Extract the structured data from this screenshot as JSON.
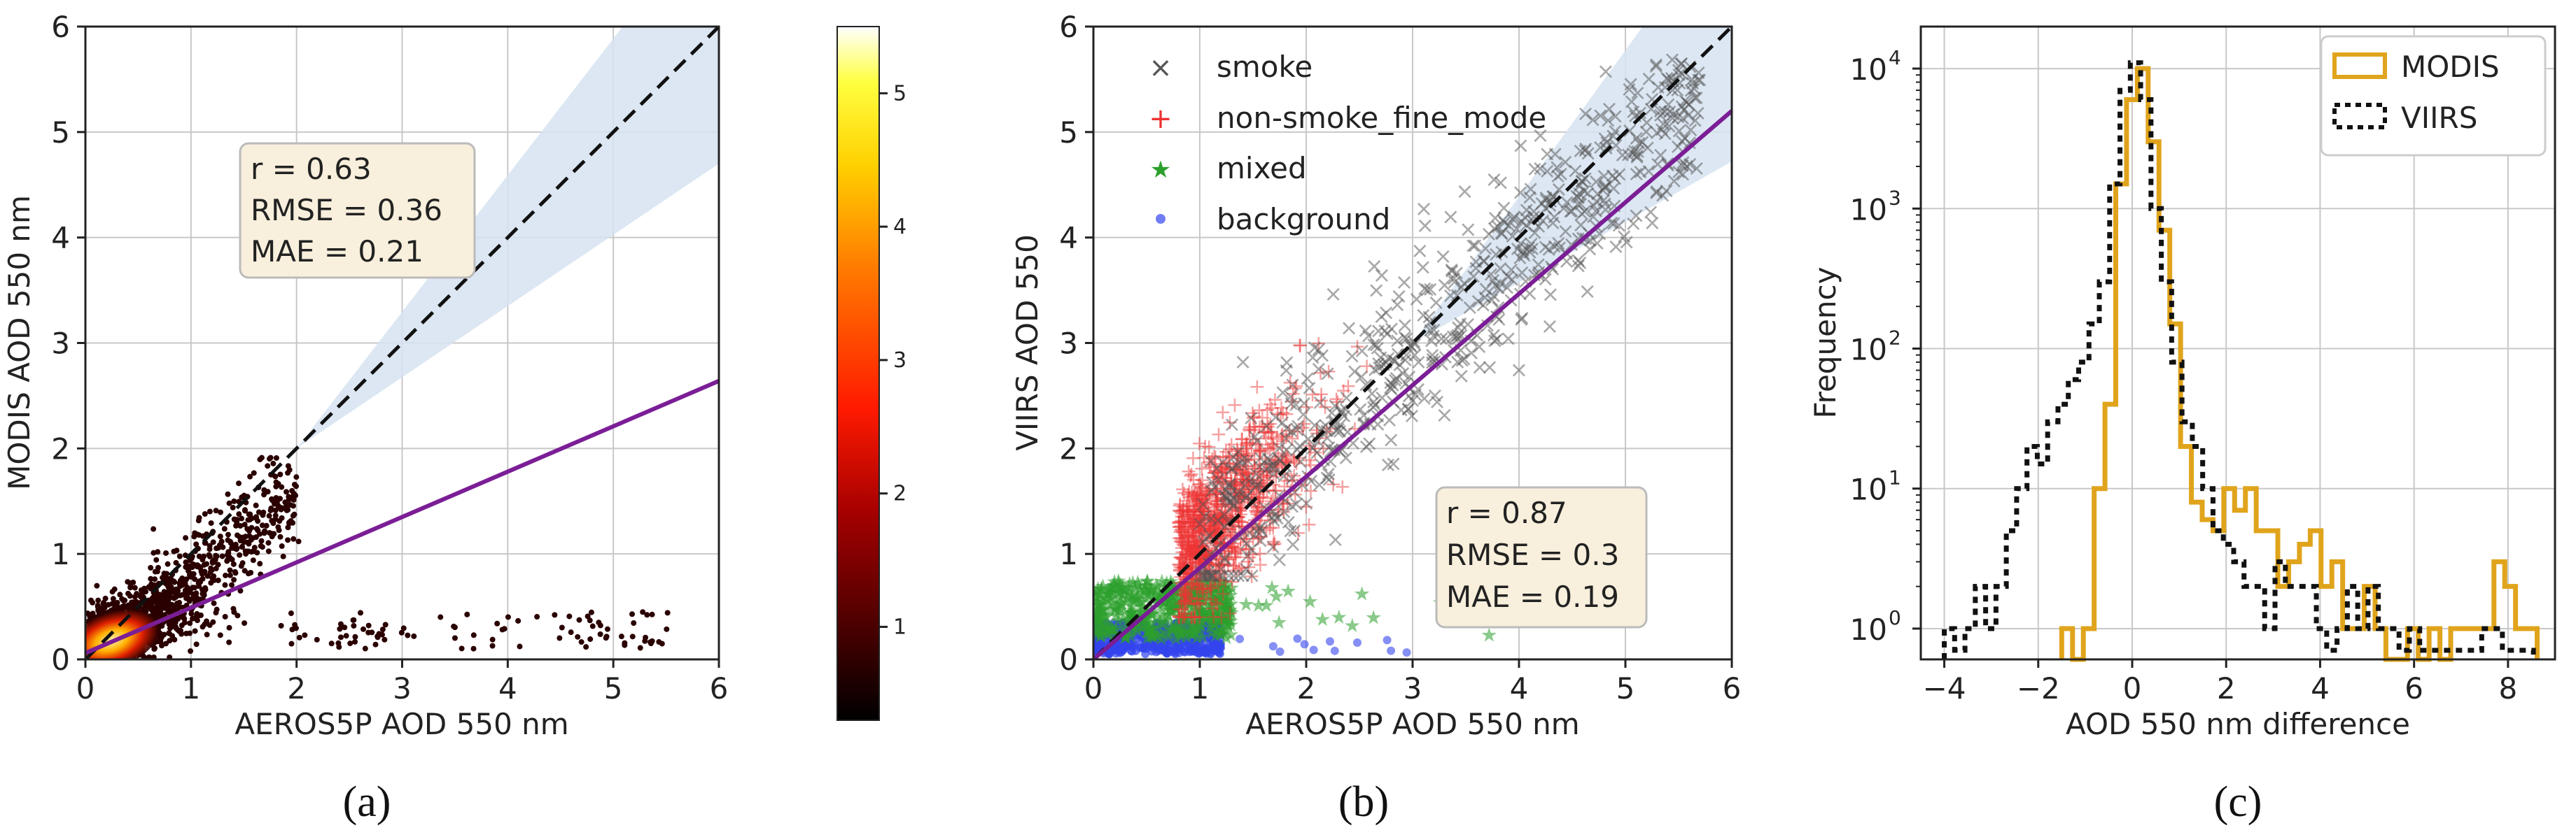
{
  "chart_data": [
    {
      "id": "a",
      "type": "scatter",
      "panel_label": "(a)",
      "xlabel": "AEROS5P AOD 550 nm",
      "ylabel": "MODIS AOD 550 nm",
      "xlim": [
        0,
        6
      ],
      "ylim": [
        0,
        6
      ],
      "xticks": [
        "0",
        "1",
        "2",
        "3",
        "4",
        "5",
        "6"
      ],
      "yticks": [
        "0",
        "1",
        "2",
        "3",
        "4",
        "5",
        "6"
      ],
      "grid": true,
      "stats": [
        "r = 0.63",
        "RMSE = 0.36",
        "MAE = 0.21"
      ],
      "one_to_one_line": {
        "x": [
          0,
          6
        ],
        "y": [
          0,
          6
        ]
      },
      "regression_line": {
        "x": [
          0,
          6
        ],
        "y": [
          0.06,
          2.64
        ]
      },
      "colorbar": {
        "min": 0.3,
        "max": 5.5,
        "ticks": [
          "1",
          "2",
          "3",
          "4",
          "5"
        ],
        "colormap": "hot"
      },
      "colors": {
        "regression": "#7b1e96",
        "band": "#d6e3f1",
        "box_fill": "#f8efdc",
        "box_edge": "#bbbbbb"
      }
    },
    {
      "id": "b",
      "type": "scatter",
      "panel_label": "(b)",
      "xlabel": "AEROS5P AOD 550 nm",
      "ylabel": "VIIRS AOD 550",
      "xlim": [
        0,
        6
      ],
      "ylim": [
        0,
        6
      ],
      "xticks": [
        "0",
        "1",
        "2",
        "3",
        "4",
        "5",
        "6"
      ],
      "yticks": [
        "0",
        "1",
        "2",
        "3",
        "4",
        "5",
        "6"
      ],
      "grid": true,
      "legend": {
        "placement": "top-left",
        "entries": [
          {
            "label": "smoke",
            "marker": "x",
            "color": "#555555"
          },
          {
            "label": "non-smoke_fine_mode",
            "marker": "+",
            "color": "#ee3333"
          },
          {
            "label": "mixed",
            "marker": "star",
            "color": "#2ca02c"
          },
          {
            "label": "background",
            "marker": "dot",
            "color": "#3344ee"
          }
        ]
      },
      "stats": [
        "r = 0.87",
        "RMSE = 0.3",
        "MAE = 0.19"
      ],
      "one_to_one_line": {
        "x": [
          0,
          6
        ],
        "y": [
          0,
          6
        ]
      },
      "regression_line": {
        "x": [
          0,
          6
        ],
        "y": [
          0,
          5.2
        ]
      },
      "colors": {
        "regression": "#7b1e96",
        "band": "#d6e3f1",
        "box_fill": "#f8efdc",
        "box_edge": "#bbbbbb"
      }
    },
    {
      "id": "c",
      "type": "histogram",
      "panel_label": "(c)",
      "xlabel": "AOD 550 nm difference",
      "ylabel": "Frequency",
      "yscale": "log",
      "xlim": [
        -4.5,
        9.0
      ],
      "ylim_log10": [
        -0.22,
        4.3
      ],
      "xticks": [
        -4,
        -2,
        0,
        2,
        4,
        6,
        8
      ],
      "xtick_labels": [
        "−4",
        "−2",
        "0",
        "2",
        "4",
        "6",
        "8"
      ],
      "ytick_labels": [
        "10",
        "10",
        "10",
        "10",
        "10"
      ],
      "ytick_exponents": [
        "0",
        "1",
        "2",
        "3",
        "4"
      ],
      "grid": true,
      "legend": {
        "placement": "top-right",
        "entries": [
          "MODIS",
          "VIIRS"
        ]
      },
      "colors": {
        "MODIS": "#e0a41c",
        "VIIRS": "#111111"
      },
      "series": [
        {
          "name": "MODIS",
          "bins": [
            -1.5,
            -1.27,
            -1.04,
            -0.81,
            -0.58,
            -0.35,
            -0.12,
            0.11,
            0.34,
            0.57,
            0.8,
            1.03,
            1.26,
            1.49,
            1.72,
            1.95,
            2.18,
            2.41,
            2.64,
            2.87,
            3.1,
            3.33,
            3.56,
            3.79,
            4.02,
            4.25,
            4.48,
            4.71,
            4.94,
            5.17,
            5.4,
            5.63,
            5.86,
            6.09,
            6.32,
            6.55,
            6.78,
            7.01,
            7.24,
            7.47,
            7.7,
            7.93,
            8.16,
            8.39,
            8.62
          ],
          "counts": [
            1,
            0,
            1,
            10,
            40,
            1500,
            6000,
            10000,
            3000,
            700,
            150,
            20,
            8,
            6,
            5,
            10,
            7,
            10,
            5,
            5,
            2,
            3,
            4,
            5,
            2,
            3,
            1,
            1,
            2,
            1,
            0,
            0,
            1,
            0,
            1,
            0,
            1,
            1,
            1,
            1,
            3,
            2,
            1,
            1
          ]
        },
        {
          "name": "VIIRS",
          "bins": [
            -4.0,
            -3.78,
            -3.56,
            -3.34,
            -3.12,
            -2.9,
            -2.68,
            -2.46,
            -2.24,
            -2.02,
            -1.8,
            -1.58,
            -1.36,
            -1.14,
            -0.92,
            -0.7,
            -0.48,
            -0.26,
            -0.04,
            0.18,
            0.4,
            0.62,
            0.84,
            1.06,
            1.28,
            1.5,
            1.72,
            1.94,
            2.16,
            2.38,
            2.6,
            2.82,
            3.04,
            3.26,
            3.48,
            3.7,
            3.92,
            4.14,
            4.36,
            4.58,
            4.8,
            5.02,
            5.24,
            5.46,
            5.68,
            5.9,
            6.12,
            6.34,
            6.56,
            6.78,
            7.0,
            7.22,
            7.44,
            7.66,
            7.88,
            8.1,
            8.32,
            8.54
          ],
          "counts": [
            1,
            0.7,
            1,
            2,
            1,
            2,
            5,
            10,
            20,
            15,
            30,
            40,
            60,
            80,
            150,
            300,
            1500,
            7000,
            11000,
            6000,
            1000,
            300,
            80,
            30,
            20,
            10,
            5,
            4,
            3,
            2,
            2,
            1,
            3,
            2,
            2,
            2,
            1,
            0.7,
            1,
            2,
            1,
            2,
            1,
            1,
            0.7,
            1,
            0.7,
            0.7,
            0.7,
            0.7,
            0.7,
            0.7,
            1,
            1,
            0.7,
            0.7,
            0.7
          ]
        }
      ]
    }
  ]
}
